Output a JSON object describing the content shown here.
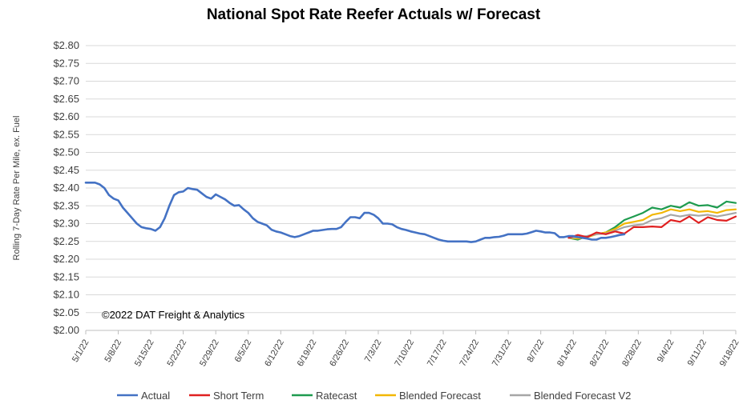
{
  "colors": {
    "actual": "#4472c4",
    "short_term": "#e02020",
    "ratecast": "#1e9b4f",
    "blended": "#f2b705",
    "blended_v2": "#a6a6a6"
  },
  "chart_data": {
    "type": "line",
    "title": "National Spot Rate Reefer Actuals w/ Forecast",
    "ylabel": "Rolling 7-Day Rate Per Mile, ex. Fuel",
    "xlabel": "",
    "annotation": "©2022 DAT Freight & Analytics",
    "ylim": [
      2.0,
      2.8
    ],
    "grid": true,
    "legend_position": "bottom",
    "y_ticks": [
      "$2.00",
      "$2.05",
      "$2.10",
      "$2.15",
      "$2.20",
      "$2.25",
      "$2.30",
      "$2.35",
      "$2.40",
      "$2.45",
      "$2.50",
      "$2.55",
      "$2.60",
      "$2.65",
      "$2.70",
      "$2.75",
      "$2.80"
    ],
    "x_ticks": [
      "5/1/22",
      "5/8/22",
      "5/15/22",
      "5/22/22",
      "5/29/22",
      "6/5/22",
      "6/12/22",
      "6/19/22",
      "6/26/22",
      "7/3/22",
      "7/10/22",
      "7/17/22",
      "7/24/22",
      "7/31/22",
      "8/7/22",
      "8/14/22",
      "8/21/22",
      "8/28/22",
      "9/4/22",
      "9/11/22",
      "9/18/22"
    ],
    "x_range_days": [
      0,
      140
    ],
    "series": [
      {
        "name": "Actual",
        "color_key": "actual",
        "x": [
          0,
          2,
          3,
          4,
          5,
          6,
          7,
          8,
          9,
          10,
          11,
          12,
          13,
          14,
          15,
          16,
          17,
          18,
          19,
          20,
          21,
          22,
          23,
          24,
          25,
          26,
          27,
          28,
          29,
          30,
          31,
          32,
          33,
          34,
          35,
          36,
          37,
          38,
          39,
          40,
          41,
          42,
          43,
          44,
          45,
          46,
          47,
          48,
          49,
          50,
          51,
          52,
          53,
          54,
          55,
          56,
          57,
          58,
          59,
          60,
          61,
          62,
          63,
          64,
          65,
          66,
          67,
          68,
          69,
          70,
          71,
          72,
          73,
          74,
          75,
          76,
          77,
          78,
          79,
          80,
          81,
          82,
          83,
          84,
          85,
          86,
          87,
          88,
          89,
          90,
          91,
          92,
          93,
          94,
          95,
          96,
          97,
          98,
          99,
          100,
          101,
          102,
          103,
          104,
          105,
          106,
          107,
          108,
          109,
          110,
          111,
          112,
          113,
          114,
          115,
          116
        ],
        "values": [
          2.415,
          2.415,
          2.41,
          2.4,
          2.38,
          2.37,
          2.365,
          2.345,
          2.33,
          2.315,
          2.3,
          2.29,
          2.287,
          2.285,
          2.28,
          2.29,
          2.315,
          2.35,
          2.38,
          2.388,
          2.39,
          2.4,
          2.397,
          2.395,
          2.385,
          2.375,
          2.37,
          2.382,
          2.375,
          2.368,
          2.358,
          2.35,
          2.352,
          2.34,
          2.33,
          2.315,
          2.305,
          2.3,
          2.295,
          2.283,
          2.278,
          2.275,
          2.27,
          2.265,
          2.262,
          2.265,
          2.27,
          2.275,
          2.28,
          2.28,
          2.282,
          2.284,
          2.285,
          2.285,
          2.29,
          2.305,
          2.318,
          2.318,
          2.315,
          2.33,
          2.33,
          2.325,
          2.315,
          2.3,
          2.3,
          2.298,
          2.29,
          2.285,
          2.282,
          2.278,
          2.275,
          2.272,
          2.27,
          2.265,
          2.26,
          2.255,
          2.252,
          2.25,
          2.25,
          2.25,
          2.25,
          2.25,
          2.248,
          2.25,
          2.255,
          2.26,
          2.26,
          2.262,
          2.263,
          2.266,
          2.27,
          2.27,
          2.27,
          2.27,
          2.272,
          2.276,
          2.28,
          2.278,
          2.275,
          2.275,
          2.273,
          2.262,
          2.262,
          2.265,
          2.265,
          2.262,
          2.26,
          2.258,
          2.255,
          2.255,
          2.26,
          2.26,
          2.262,
          2.265,
          2.268,
          2.27
        ]
      },
      {
        "name": "Short Term",
        "color_key": "short_term",
        "x": [
          104,
          106,
          108,
          110,
          112,
          114,
          116,
          118,
          120,
          122,
          124,
          126,
          128,
          130,
          132,
          134,
          136,
          138,
          140
        ],
        "values": [
          2.26,
          2.268,
          2.262,
          2.275,
          2.27,
          2.278,
          2.272,
          2.29,
          2.29,
          2.292,
          2.29,
          2.31,
          2.305,
          2.32,
          2.302,
          2.318,
          2.31,
          2.308,
          2.32
        ]
      },
      {
        "name": "Ratecast",
        "color_key": "ratecast",
        "x": [
          104,
          106,
          108,
          110,
          112,
          114,
          116,
          118,
          120,
          122,
          124,
          126,
          128,
          130,
          132,
          134,
          136,
          138,
          140
        ],
        "values": [
          2.26,
          2.255,
          2.265,
          2.27,
          2.275,
          2.29,
          2.31,
          2.32,
          2.33,
          2.345,
          2.34,
          2.35,
          2.345,
          2.36,
          2.35,
          2.352,
          2.345,
          2.362,
          2.358
        ]
      },
      {
        "name": "Blended Forecast",
        "color_key": "blended",
        "x": [
          104,
          106,
          108,
          110,
          112,
          114,
          116,
          118,
          120,
          122,
          124,
          126,
          128,
          130,
          132,
          134,
          136,
          138,
          140
        ],
        "values": [
          2.26,
          2.258,
          2.262,
          2.27,
          2.275,
          2.285,
          2.3,
          2.305,
          2.31,
          2.325,
          2.33,
          2.34,
          2.335,
          2.34,
          2.333,
          2.335,
          2.33,
          2.338,
          2.34
        ]
      },
      {
        "name": "Blended Forecast V2",
        "color_key": "blended_v2",
        "x": [
          104,
          106,
          108,
          110,
          112,
          114,
          116,
          118,
          120,
          122,
          124,
          126,
          128,
          130,
          132,
          134,
          136,
          138,
          140
        ],
        "values": [
          2.26,
          2.262,
          2.265,
          2.27,
          2.272,
          2.28,
          2.29,
          2.295,
          2.298,
          2.31,
          2.315,
          2.325,
          2.32,
          2.325,
          2.322,
          2.325,
          2.32,
          2.325,
          2.33
        ]
      }
    ]
  }
}
